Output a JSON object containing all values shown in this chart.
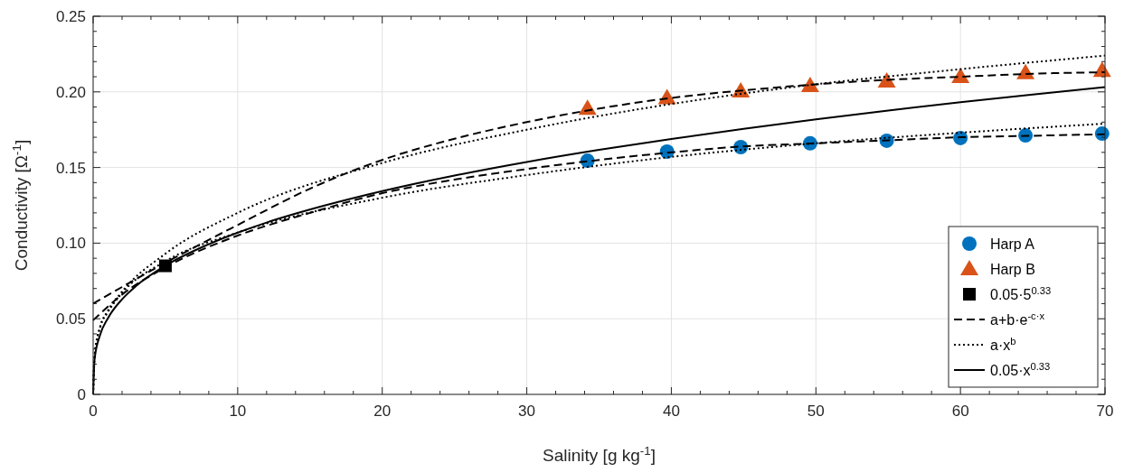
{
  "chart_data": {
    "type": "scatter",
    "xlabel": "Salinity [g kg$^{-1}$]",
    "ylabel": "Conductivity [Ω$^{-1}$]",
    "xlim": [
      0,
      70
    ],
    "ylim": [
      0,
      0.25
    ],
    "xticks": [
      0,
      {
        "value": 2,
        "label": null
      },
      {
        "value": 4,
        "label": null
      },
      {
        "value": 6,
        "label": null
      },
      {
        "value": 8,
        "label": null
      },
      10,
      {
        "value": 12,
        "label": null
      },
      {
        "value": 14,
        "label": null
      },
      {
        "value": 16,
        "label": null
      },
      {
        "value": 18,
        "label": null
      },
      20,
      {
        "value": 22,
        "label": null
      },
      {
        "value": 24,
        "label": null
      },
      {
        "value": 26,
        "label": null
      },
      {
        "value": 28,
        "label": null
      },
      30,
      {
        "value": 32,
        "label": null
      },
      {
        "value": 34,
        "label": null
      },
      {
        "value": 36,
        "label": null
      },
      {
        "value": 38,
        "label": null
      },
      40,
      {
        "value": 42,
        "label": null
      },
      {
        "value": 44,
        "label": null
      },
      {
        "value": 46,
        "label": null
      },
      {
        "value": 48,
        "label": null
      },
      50,
      {
        "value": 52,
        "label": null
      },
      {
        "value": 54,
        "label": null
      },
      {
        "value": 56,
        "label": null
      },
      {
        "value": 58,
        "label": null
      },
      60,
      {
        "value": 62,
        "label": null
      },
      {
        "value": 64,
        "label": null
      },
      {
        "value": 66,
        "label": null
      },
      {
        "value": 68,
        "label": null
      },
      70
    ],
    "yticks": [
      0,
      {
        "value": 0.01,
        "label": null
      },
      {
        "value": 0.02,
        "label": null
      },
      {
        "value": 0.03,
        "label": null
      },
      {
        "value": 0.04,
        "label": null
      },
      {
        "value": 0.05,
        "label": "0.05"
      },
      {
        "value": 0.06,
        "label": null
      },
      {
        "value": 0.07,
        "label": null
      },
      {
        "value": 0.08,
        "label": null
      },
      {
        "value": 0.09,
        "label": null
      },
      {
        "value": 0.1,
        "label": "0.10"
      },
      {
        "value": 0.11,
        "label": null
      },
      {
        "value": 0.12,
        "label": null
      },
      {
        "value": 0.13,
        "label": null
      },
      {
        "value": 0.14,
        "label": null
      },
      {
        "value": 0.15,
        "label": "0.15"
      },
      {
        "value": 0.16,
        "label": null
      },
      {
        "value": 0.17,
        "label": null
      },
      {
        "value": 0.18,
        "label": null
      },
      {
        "value": 0.19,
        "label": null
      },
      {
        "value": 0.2,
        "label": "0.20"
      },
      {
        "value": 0.21,
        "label": null
      },
      {
        "value": 0.22,
        "label": null
      },
      {
        "value": 0.23,
        "label": null
      },
      {
        "value": 0.24,
        "label": null
      },
      {
        "value": 0.25,
        "label": "0.25"
      }
    ],
    "grid": true,
    "legend": "bottom right",
    "series": [
      {
        "name": "Harp A",
        "marker": "circle",
        "color": "#0072bd",
        "x": [
          34.2,
          39.7,
          44.8,
          49.6,
          54.9,
          60,
          64.5,
          69.8
        ],
        "values": [
          0.1545,
          0.1605,
          0.1635,
          0.166,
          0.1677,
          0.1695,
          0.1712,
          0.1724
        ]
      },
      {
        "name": "Harp B",
        "marker": "triangle",
        "color": "#d95319",
        "x": [
          34.2,
          39.7,
          44.8,
          49.6,
          54.9,
          60,
          64.5,
          69.8
        ],
        "values": [
          0.189,
          0.196,
          0.2005,
          0.204,
          0.207,
          0.21,
          0.2125,
          0.214
        ]
      },
      {
        "name": "0.05·5$^{0.33}$",
        "marker": "square",
        "color": "#000000",
        "x": [
          5
        ],
        "values": [
          0.085
        ]
      },
      {
        "name": "a+b·e$^{-c·x}$",
        "type": "line",
        "line_style": "dashed",
        "color": "#000000",
        "x": [
          0,
          2,
          5,
          10,
          15,
          20,
          25,
          30,
          35,
          40,
          45,
          50,
          55,
          60,
          65,
          70
        ],
        "values": [
          0.06,
          0.071,
          0.087,
          0.112,
          0.136,
          0.155,
          0.169,
          0.18,
          0.189,
          0.196,
          0.201,
          0.205,
          0.208,
          0.21,
          0.212,
          0.213
        ]
      },
      {
        "type": "line",
        "line_style": "dashed",
        "color": "#000000",
        "x": [
          0,
          2,
          5,
          10,
          15,
          20,
          25,
          30,
          35,
          40,
          45,
          50,
          55,
          60,
          65,
          70
        ],
        "values": [
          0.049,
          0.066,
          0.084,
          0.105,
          0.12,
          0.133,
          0.142,
          0.149,
          0.155,
          0.16,
          0.164,
          0.166,
          0.168,
          0.17,
          0.171,
          0.172
        ]
      },
      {
        "name": "a·x$^{b}$",
        "type": "line",
        "line_style": "dotted",
        "color": "#000000",
        "x": [
          0,
          0.1,
          0.5,
          1,
          2,
          5,
          10,
          20,
          30,
          40,
          50,
          60,
          70
        ],
        "values": [
          0,
          0.025,
          0.045,
          0.055,
          0.068,
          0.093,
          0.12,
          0.153,
          0.175,
          0.192,
          0.205,
          0.215,
          0.224
        ]
      },
      {
        "type": "line",
        "line_style": "dotted",
        "color": "#000000",
        "x": [
          0,
          0.1,
          0.5,
          1,
          2,
          5,
          10,
          20,
          30,
          40,
          50,
          60,
          70
        ],
        "values": [
          0,
          0.026,
          0.045,
          0.054,
          0.067,
          0.088,
          0.107,
          0.13,
          0.145,
          0.157,
          0.166,
          0.173,
          0.179
        ]
      },
      {
        "name": "0.05·x$^{0.33}$",
        "type": "line",
        "line_style": "solid",
        "color": "#000000",
        "x": [
          0,
          0.1,
          0.5,
          1,
          2,
          3,
          5,
          8,
          12,
          16,
          20,
          25,
          30,
          35,
          40,
          45,
          50,
          55,
          60,
          65,
          70
        ],
        "values": [
          0,
          0.0234,
          0.0398,
          0.05,
          0.0629,
          0.0719,
          0.0851,
          0.0993,
          0.1136,
          0.1248,
          0.1344,
          0.1447,
          0.1537,
          0.1617,
          0.1689,
          0.1756,
          0.1818,
          0.1877,
          0.1931,
          0.1983,
          0.2031
        ]
      }
    ]
  }
}
